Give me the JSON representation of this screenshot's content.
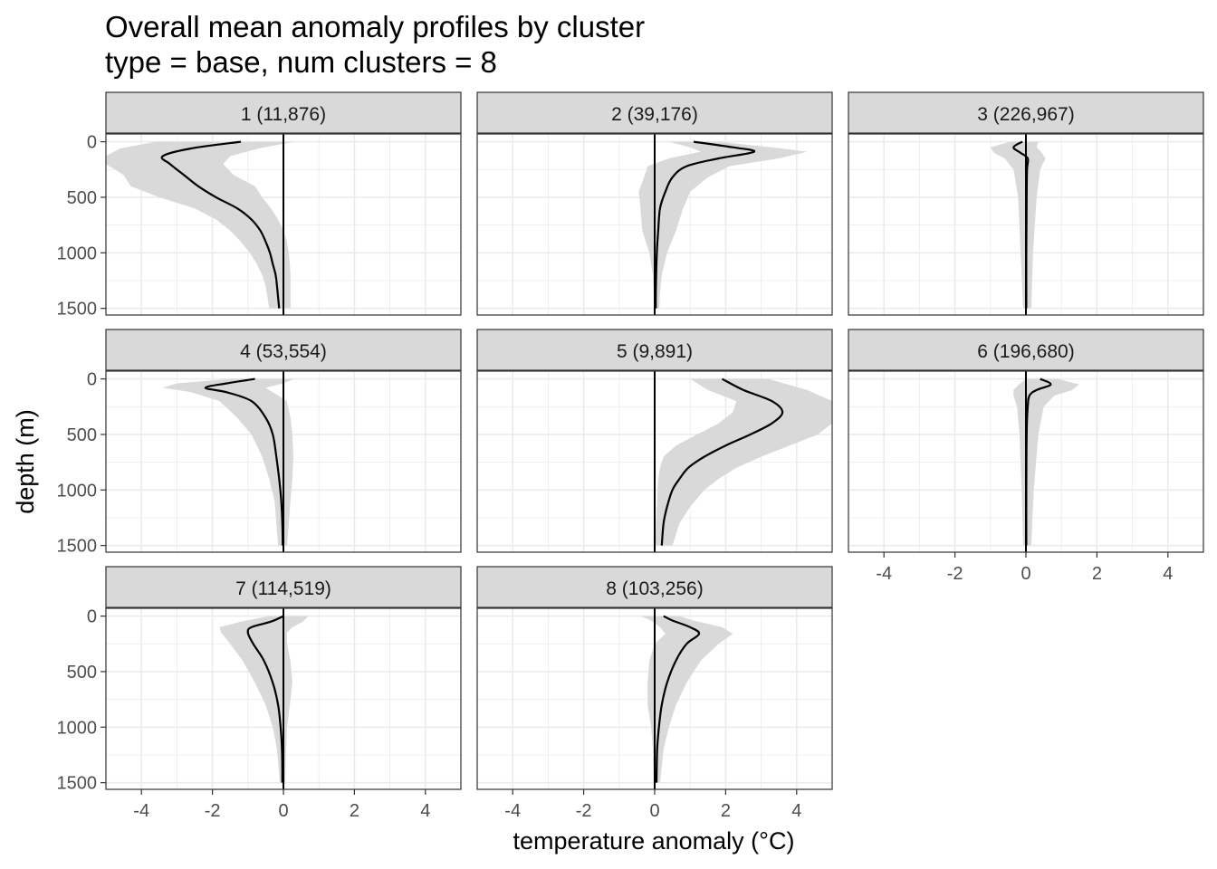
{
  "chart_data": {
    "type": "line",
    "title": "Overall mean anomaly profiles by cluster",
    "subtitle": "type = base, num clusters = 8",
    "xlabel": "temperature anomaly (°C)",
    "ylabel": "depth (m)",
    "xlim": [
      -5,
      5
    ],
    "ylim": [
      1560,
      -70
    ],
    "y_reversed": true,
    "x_ticks": [
      -4,
      -2,
      0,
      2,
      4
    ],
    "y_ticks": [
      0,
      500,
      1000,
      1500
    ],
    "grid": true,
    "reference_line_x": 0,
    "panels": [
      {
        "label": "1 (11,876)",
        "mean": [
          [
            -1.2,
            0
          ],
          [
            -2.6,
            60
          ],
          [
            -3.4,
            130
          ],
          [
            -3.2,
            200
          ],
          [
            -2.8,
            300
          ],
          [
            -2.4,
            400
          ],
          [
            -1.9,
            500
          ],
          [
            -1.3,
            600
          ],
          [
            -0.9,
            700
          ],
          [
            -0.65,
            800
          ],
          [
            -0.5,
            900
          ],
          [
            -0.38,
            1000
          ],
          [
            -0.3,
            1100
          ],
          [
            -0.22,
            1200
          ],
          [
            -0.18,
            1300
          ],
          [
            -0.15,
            1400
          ],
          [
            -0.12,
            1500
          ]
        ],
        "lower": [
          [
            -3.6,
            0
          ],
          [
            -4.6,
            60
          ],
          [
            -5.0,
            130
          ],
          [
            -5.0,
            200
          ],
          [
            -4.5,
            300
          ],
          [
            -4.3,
            400
          ],
          [
            -3.5,
            500
          ],
          [
            -2.5,
            600
          ],
          [
            -1.9,
            700
          ],
          [
            -1.5,
            800
          ],
          [
            -1.2,
            900
          ],
          [
            -0.95,
            1000
          ],
          [
            -0.75,
            1100
          ],
          [
            -0.6,
            1200
          ],
          [
            -0.5,
            1300
          ],
          [
            -0.45,
            1400
          ],
          [
            -0.4,
            1500
          ]
        ],
        "upper": [
          [
            0.3,
            0
          ],
          [
            -0.7,
            60
          ],
          [
            -1.5,
            130
          ],
          [
            -1.7,
            200
          ],
          [
            -1.4,
            300
          ],
          [
            -0.8,
            400
          ],
          [
            -0.6,
            500
          ],
          [
            -0.35,
            600
          ],
          [
            -0.15,
            700
          ],
          [
            0,
            800
          ],
          [
            0.1,
            900
          ],
          [
            0.15,
            1000
          ],
          [
            0.18,
            1100
          ],
          [
            0.2,
            1200
          ],
          [
            0.2,
            1300
          ],
          [
            0.2,
            1400
          ],
          [
            0.2,
            1500
          ]
        ]
      },
      {
        "label": "2 (39,176)",
        "mean": [
          [
            1.1,
            0
          ],
          [
            2.2,
            50
          ],
          [
            2.8,
            90
          ],
          [
            1.8,
            150
          ],
          [
            0.9,
            220
          ],
          [
            0.5,
            320
          ],
          [
            0.3,
            450
          ],
          [
            0.15,
            600
          ],
          [
            0.1,
            800
          ],
          [
            0.06,
            1000
          ],
          [
            0.04,
            1200
          ],
          [
            0.03,
            1400
          ],
          [
            0.03,
            1500
          ]
        ],
        "lower": [
          [
            0.4,
            0
          ],
          [
            1.0,
            50
          ],
          [
            1.3,
            90
          ],
          [
            0.4,
            150
          ],
          [
            -0.2,
            220
          ],
          [
            -0.3,
            320
          ],
          [
            -0.45,
            450
          ],
          [
            -0.4,
            600
          ],
          [
            -0.35,
            800
          ],
          [
            -0.15,
            1000
          ],
          [
            -0.05,
            1200
          ],
          [
            -0.02,
            1400
          ],
          [
            -0.02,
            1500
          ]
        ],
        "upper": [
          [
            1.8,
            0
          ],
          [
            3.3,
            50
          ],
          [
            4.3,
            90
          ],
          [
            3.5,
            150
          ],
          [
            2.1,
            220
          ],
          [
            1.5,
            320
          ],
          [
            1.0,
            450
          ],
          [
            0.8,
            600
          ],
          [
            0.6,
            800
          ],
          [
            0.35,
            1000
          ],
          [
            0.2,
            1200
          ],
          [
            0.14,
            1400
          ],
          [
            0.13,
            1500
          ]
        ]
      },
      {
        "label": "3 (226,967)",
        "mean": [
          [
            -0.1,
            0
          ],
          [
            -0.35,
            50
          ],
          [
            -0.15,
            100
          ],
          [
            0.05,
            150
          ],
          [
            0.03,
            250
          ],
          [
            0.02,
            500
          ],
          [
            0.01,
            1000
          ],
          [
            0.01,
            1500
          ]
        ],
        "lower": [
          [
            -0.45,
            0
          ],
          [
            -1.0,
            50
          ],
          [
            -0.9,
            100
          ],
          [
            -0.6,
            150
          ],
          [
            -0.35,
            250
          ],
          [
            -0.22,
            500
          ],
          [
            -0.15,
            1000
          ],
          [
            -0.08,
            1500
          ]
        ],
        "upper": [
          [
            0.35,
            0
          ],
          [
            0.3,
            50
          ],
          [
            0.45,
            100
          ],
          [
            0.55,
            150
          ],
          [
            0.4,
            250
          ],
          [
            0.3,
            500
          ],
          [
            0.2,
            1000
          ],
          [
            0.15,
            1500
          ]
        ]
      },
      {
        "label": "4 (53,554)",
        "mean": [
          [
            -0.8,
            0
          ],
          [
            -1.6,
            40
          ],
          [
            -2.2,
            80
          ],
          [
            -1.6,
            120
          ],
          [
            -0.9,
            200
          ],
          [
            -0.5,
            350
          ],
          [
            -0.3,
            500
          ],
          [
            -0.2,
            700
          ],
          [
            -0.12,
            900
          ],
          [
            -0.06,
            1100
          ],
          [
            -0.03,
            1300
          ],
          [
            -0.02,
            1500
          ]
        ],
        "lower": [
          [
            -1.5,
            0
          ],
          [
            -3.0,
            40
          ],
          [
            -3.4,
            80
          ],
          [
            -2.6,
            120
          ],
          [
            -1.8,
            200
          ],
          [
            -1.3,
            350
          ],
          [
            -0.9,
            500
          ],
          [
            -0.6,
            700
          ],
          [
            -0.4,
            900
          ],
          [
            -0.25,
            1100
          ],
          [
            -0.2,
            1300
          ],
          [
            -0.15,
            1500
          ]
        ],
        "upper": [
          [
            0.3,
            0
          ],
          [
            0.0,
            40
          ],
          [
            -0.5,
            80
          ],
          [
            -0.3,
            120
          ],
          [
            0.1,
            200
          ],
          [
            0.2,
            350
          ],
          [
            0.25,
            500
          ],
          [
            0.28,
            700
          ],
          [
            0.25,
            900
          ],
          [
            0.2,
            1100
          ],
          [
            0.15,
            1300
          ],
          [
            0.1,
            1500
          ]
        ]
      },
      {
        "label": "5 (9,891)",
        "mean": [
          [
            1.9,
            0
          ],
          [
            2.5,
            100
          ],
          [
            3.3,
            200
          ],
          [
            3.6,
            300
          ],
          [
            3.3,
            400
          ],
          [
            2.7,
            500
          ],
          [
            2.0,
            600
          ],
          [
            1.4,
            700
          ],
          [
            0.95,
            800
          ],
          [
            0.7,
            900
          ],
          [
            0.5,
            1000
          ],
          [
            0.35,
            1150
          ],
          [
            0.25,
            1300
          ],
          [
            0.2,
            1500
          ]
        ],
        "lower": [
          [
            1.0,
            0
          ],
          [
            1.5,
            100
          ],
          [
            2.3,
            200
          ],
          [
            2.2,
            300
          ],
          [
            1.8,
            400
          ],
          [
            1.2,
            500
          ],
          [
            0.6,
            600
          ],
          [
            0.25,
            700
          ],
          [
            0.15,
            800
          ],
          [
            0.1,
            900
          ],
          [
            0.08,
            1000
          ],
          [
            0.05,
            1200
          ],
          [
            0.02,
            1400
          ],
          [
            0.01,
            1500
          ]
        ],
        "upper": [
          [
            3.2,
            0
          ],
          [
            4.3,
            100
          ],
          [
            5.0,
            200
          ],
          [
            5.0,
            300
          ],
          [
            5.0,
            400
          ],
          [
            4.6,
            500
          ],
          [
            3.8,
            600
          ],
          [
            3.0,
            700
          ],
          [
            2.3,
            800
          ],
          [
            1.8,
            900
          ],
          [
            1.4,
            1000
          ],
          [
            1.0,
            1150
          ],
          [
            0.7,
            1300
          ],
          [
            0.5,
            1500
          ]
        ]
      },
      {
        "label": "6 (196,680)",
        "mean": [
          [
            0.4,
            0
          ],
          [
            0.7,
            50
          ],
          [
            0.3,
            100
          ],
          [
            0.1,
            150
          ],
          [
            0.05,
            250
          ],
          [
            0.02,
            500
          ],
          [
            0.01,
            1000
          ],
          [
            0.01,
            1500
          ]
        ],
        "lower": [
          [
            0.0,
            0
          ],
          [
            -0.2,
            50
          ],
          [
            -0.35,
            100
          ],
          [
            -0.35,
            150
          ],
          [
            -0.25,
            250
          ],
          [
            -0.18,
            500
          ],
          [
            -0.12,
            1000
          ],
          [
            -0.08,
            1500
          ]
        ],
        "upper": [
          [
            0.9,
            0
          ],
          [
            1.5,
            50
          ],
          [
            1.3,
            100
          ],
          [
            0.8,
            150
          ],
          [
            0.5,
            250
          ],
          [
            0.35,
            500
          ],
          [
            0.22,
            1000
          ],
          [
            0.15,
            1500
          ]
        ]
      },
      {
        "label": "7 (114,519)",
        "mean": [
          [
            0.0,
            0
          ],
          [
            -0.35,
            50
          ],
          [
            -0.9,
            100
          ],
          [
            -1.0,
            150
          ],
          [
            -0.85,
            250
          ],
          [
            -0.55,
            400
          ],
          [
            -0.3,
            600
          ],
          [
            -0.15,
            800
          ],
          [
            -0.08,
            1000
          ],
          [
            -0.04,
            1200
          ],
          [
            -0.03,
            1500
          ]
        ],
        "lower": [
          [
            -0.4,
            0
          ],
          [
            -1.2,
            50
          ],
          [
            -1.8,
            100
          ],
          [
            -1.75,
            150
          ],
          [
            -1.5,
            250
          ],
          [
            -1.15,
            400
          ],
          [
            -0.8,
            600
          ],
          [
            -0.5,
            800
          ],
          [
            -0.3,
            1000
          ],
          [
            -0.18,
            1200
          ],
          [
            -0.1,
            1500
          ]
        ],
        "upper": [
          [
            0.7,
            0
          ],
          [
            0.55,
            50
          ],
          [
            0.25,
            100
          ],
          [
            0.1,
            150
          ],
          [
            0.1,
            250
          ],
          [
            0.2,
            400
          ],
          [
            0.25,
            600
          ],
          [
            0.18,
            800
          ],
          [
            0.1,
            1000
          ],
          [
            0.08,
            1200
          ],
          [
            0.05,
            1500
          ]
        ]
      },
      {
        "label": "8 (103,256)",
        "mean": [
          [
            0.25,
            0
          ],
          [
            0.5,
            40
          ],
          [
            1.0,
            100
          ],
          [
            1.25,
            160
          ],
          [
            0.9,
            250
          ],
          [
            0.6,
            400
          ],
          [
            0.35,
            600
          ],
          [
            0.2,
            800
          ],
          [
            0.12,
            1000
          ],
          [
            0.07,
            1200
          ],
          [
            0.05,
            1500
          ]
        ],
        "lower": [
          [
            -0.4,
            0
          ],
          [
            -0.1,
            40
          ],
          [
            0.15,
            100
          ],
          [
            0.3,
            160
          ],
          [
            0.0,
            250
          ],
          [
            -0.15,
            400
          ],
          [
            -0.2,
            600
          ],
          [
            -0.2,
            800
          ],
          [
            -0.1,
            1000
          ],
          [
            -0.05,
            1200
          ],
          [
            -0.03,
            1500
          ]
        ],
        "upper": [
          [
            0.7,
            0
          ],
          [
            1.1,
            40
          ],
          [
            1.9,
            100
          ],
          [
            2.2,
            160
          ],
          [
            1.8,
            250
          ],
          [
            1.3,
            400
          ],
          [
            0.9,
            600
          ],
          [
            0.6,
            800
          ],
          [
            0.4,
            1000
          ],
          [
            0.25,
            1200
          ],
          [
            0.15,
            1500
          ]
        ]
      }
    ]
  }
}
